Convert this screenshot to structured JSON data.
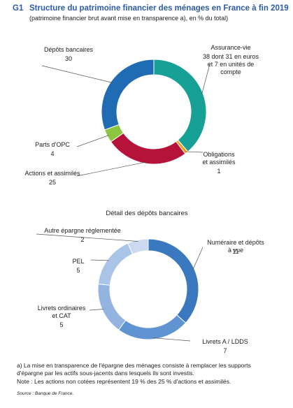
{
  "header": {
    "figure_number": "G1",
    "title": "Structure du patrimoine financier des ménages en France à fin 2019",
    "subtitle": "(patrimoine financier brut avant mise en transparence a), en % du total)"
  },
  "chart_data": [
    {
      "type": "donut",
      "categories": [
        "Assurance-vie",
        "Obligations\net assimilés",
        "Actions et assimilés",
        "Parts d'OPC",
        "Dépôts bancaires"
      ],
      "values": [
        38,
        1,
        25,
        4,
        30
      ],
      "value_labels": [
        "38 dont 31 en euros\net 7 en unités de compte",
        "1",
        "25",
        "4",
        "30"
      ],
      "colors": [
        "#17a096",
        "#f0a21e",
        "#b5133a",
        "#8cc63f",
        "#1f6cb4"
      ]
    },
    {
      "type": "donut",
      "title": "Détail des dépôts bancaires",
      "categories": [
        "Numéraire et dépôts à vue",
        "Livrets A / LDDS",
        "Livrets ordinaires\net CAT",
        "PEL",
        "Autre épargne réglementée"
      ],
      "values": [
        11,
        7,
        5,
        5,
        2
      ],
      "colors": [
        "#3a78bf",
        "#5f93d2",
        "#93b4e0",
        "#aac4e8",
        "#cbdaef"
      ]
    }
  ],
  "notes": [
    "a) La mise en transparence de l'épargne des ménages consiste à remplacer les supports d'épargne par les actifs sous-jacents dans lesquels ils sont investis.",
    "Note : Les actions non cotées représentent 19 % des 25 % d'actions et assimilés."
  ],
  "source": "Source : Banque de France."
}
